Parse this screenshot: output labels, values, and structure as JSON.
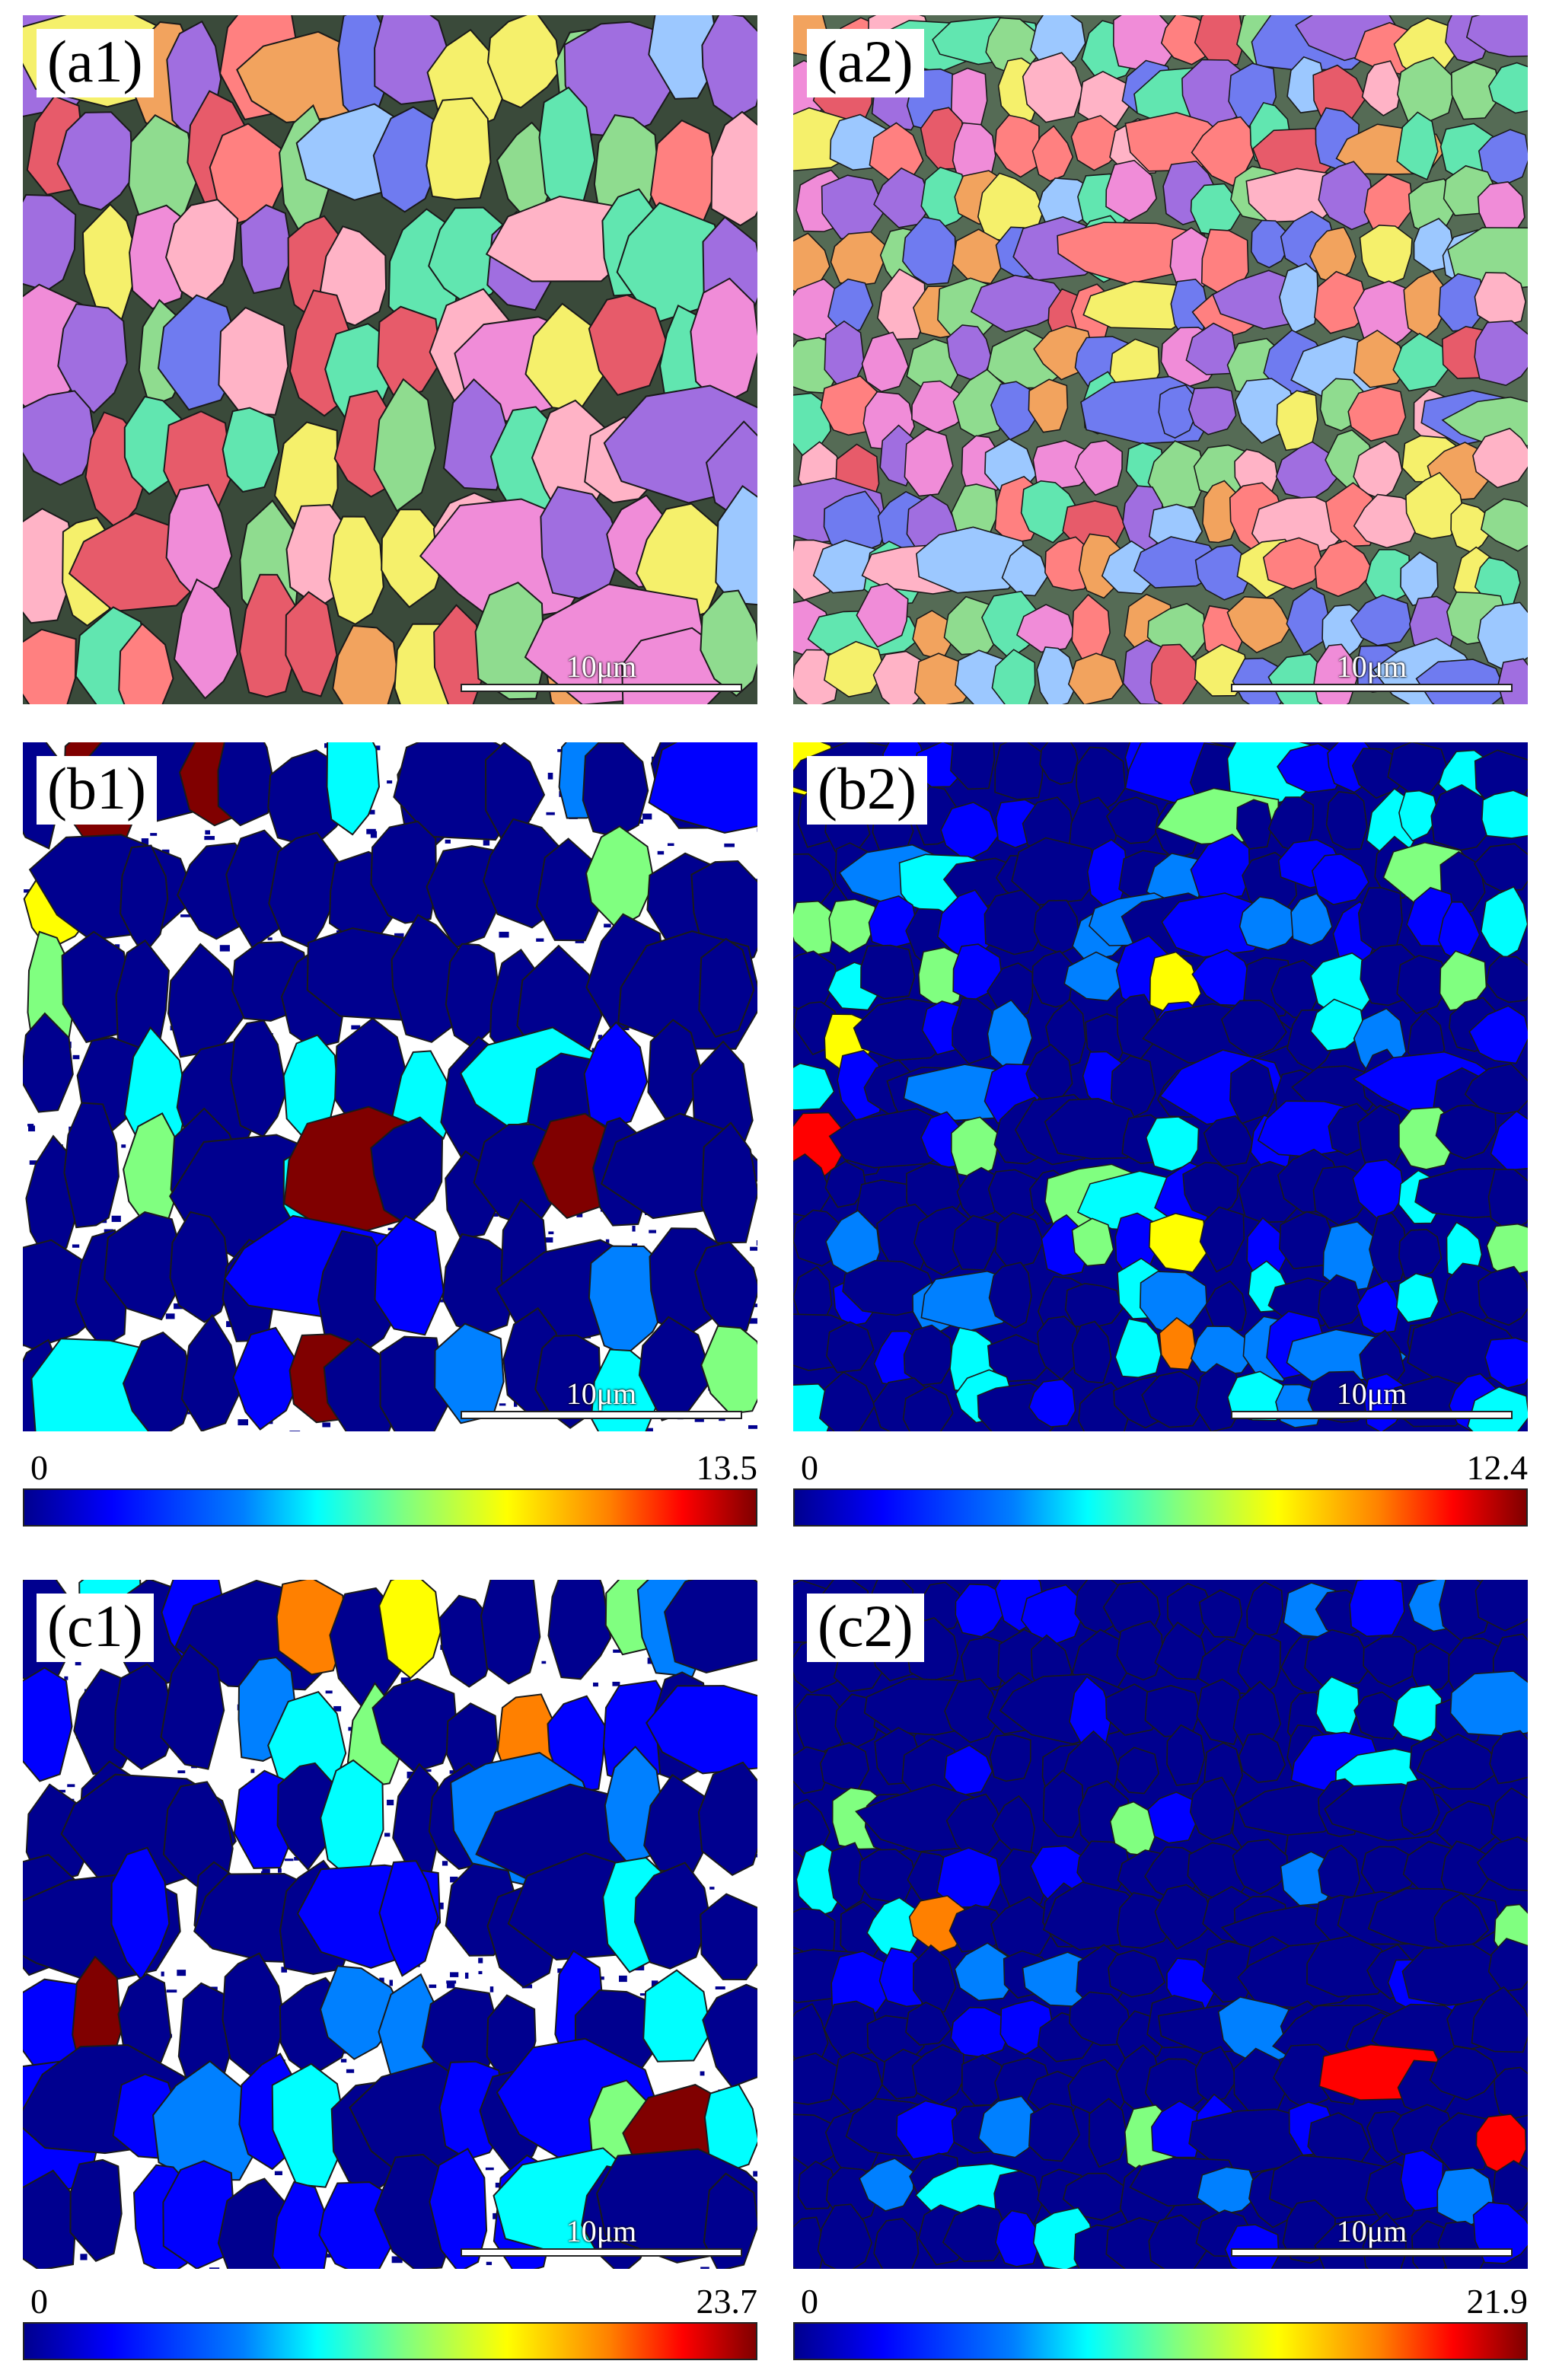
{
  "panels": {
    "a1": {
      "label": "(a1)",
      "scale": "10μm"
    },
    "a2": {
      "label": "(a2)",
      "scale": "10μm"
    },
    "b1": {
      "label": "(b1)",
      "scale": "10μm",
      "cmin": "0",
      "cmax": "13.5"
    },
    "b2": {
      "label": "(b2)",
      "scale": "10μm",
      "cmin": "0",
      "cmax": "12.4"
    },
    "c1": {
      "label": "(c1)",
      "scale": "10μm",
      "cmin": "0",
      "cmax": "23.7"
    },
    "c2": {
      "label": "(c2)",
      "scale": "10μm",
      "cmin": "0",
      "cmax": "21.9"
    }
  },
  "colors": {
    "colormap": [
      "#00008f",
      "#0000ff",
      "#0080ff",
      "#00ffff",
      "#80ff80",
      "#ffff00",
      "#ff8000",
      "#ff0000",
      "#800000"
    ],
    "ipf": [
      "#f2a35e",
      "#ff8080",
      "#e75b6a",
      "#ffb3c6",
      "#a06ee0",
      "#6f7bf0",
      "#f5f06b",
      "#8fdc8f",
      "#61e6b0",
      "#f08cd8",
      "#9cc8ff"
    ],
    "boundary": "#1a1a1a"
  }
}
